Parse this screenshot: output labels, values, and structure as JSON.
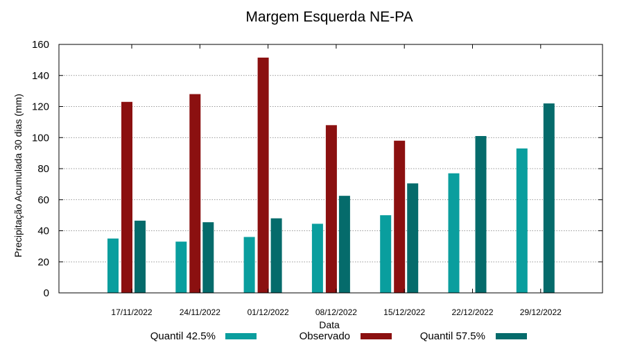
{
  "chart_data": {
    "type": "bar",
    "title": "Margem Esquerda NE-PA",
    "xlabel": "Data",
    "ylabel": "Precipitação Acumulada 30 dias (mm)",
    "ylim": [
      0,
      160
    ],
    "yticks": [
      0,
      20,
      40,
      60,
      80,
      100,
      120,
      140,
      160
    ],
    "grid": true,
    "legend_position": "bottom",
    "categories": [
      "17/11/2022",
      "24/11/2022",
      "01/12/2022",
      "08/12/2022",
      "15/12/2022",
      "22/12/2022",
      "29/12/2022"
    ],
    "series": [
      {
        "name": "Quantil 42.5%",
        "color": "#0a9e9e",
        "values": [
          35,
          33,
          36,
          44.5,
          50,
          77,
          93
        ]
      },
      {
        "name": "Observado",
        "color": "#8b1010",
        "values": [
          123,
          128,
          151.5,
          108,
          98,
          null,
          null
        ]
      },
      {
        "name": "Quantil 57.5%",
        "color": "#056b6b",
        "values": [
          46.5,
          45.5,
          48,
          62.5,
          70.5,
          101,
          122
        ]
      }
    ]
  }
}
